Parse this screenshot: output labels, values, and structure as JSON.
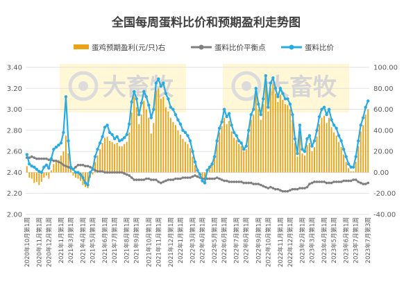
{
  "chart_data": {
    "type": "bar+line",
    "title": "全国每周蛋料比价和预期盈利走势图",
    "legend": {
      "placement": "top",
      "entries": [
        "蛋鸡预期盈利(元/只)右",
        "蛋料比价平衡点",
        "蛋料比价"
      ]
    },
    "colors": {
      "profit": "#E8A317",
      "breakeven": "#7F7F7F",
      "ratio": "#29ABE2"
    },
    "y_left": {
      "min": 2.0,
      "max": 3.4,
      "step": 0.2,
      "tick_labels": [
        "2.00",
        "2.20",
        "2.40",
        "2.60",
        "2.80",
        "3.00",
        "3.20",
        "3.40"
      ]
    },
    "y_right": {
      "min": -40,
      "max": 100,
      "step": 20,
      "tick_labels": [
        "-40.00",
        "-20.00",
        "0.00",
        "20.00",
        "40.00",
        "60.00",
        "80.00",
        "100.00"
      ]
    },
    "x_tick_labels": [
      "2020年10月第1周",
      "2020年11月第1周",
      "2020年12月第1周",
      "2021年1月第1周",
      "2021年3月第1周",
      "2021年4月第1周",
      "2021年5月第1周",
      "2021年6月第1周",
      "2021年7月第1周",
      "2021年8月第1周",
      "2021年9月第1周",
      "2021年10月第1周",
      "2021年11月第1周",
      "2021年12月第1周",
      "2022年1月第1周",
      "2022年3月第1周",
      "2022年4月第1周",
      "2022年5月第1周",
      "2022年6月第1周",
      "2022年7月第1周",
      "2022年8月第1周",
      "2022年9月第1周",
      "2022年10月第1周",
      "2022年11月第1周",
      "2022年12月第1周",
      "2023年2月第1周",
      "2023年3月第1周",
      "2023年4月第1周",
      "2023年5月第1周",
      "2023年6月第1周",
      "2023年7月第1周",
      "2023年7月第3周"
    ],
    "series": [
      {
        "name": "蛋料比价",
        "axis": "left",
        "kind": "line",
        "values": [
          2.57,
          2.48,
          2.46,
          2.45,
          2.43,
          2.41,
          2.4,
          2.45,
          2.47,
          2.44,
          2.53,
          2.62,
          2.64,
          2.66,
          2.68,
          2.78,
          3.12,
          2.7,
          2.45,
          2.43,
          2.4,
          2.4,
          2.38,
          2.35,
          2.3,
          2.28,
          2.4,
          2.43,
          2.55,
          2.62,
          2.68,
          2.74,
          2.83,
          2.85,
          2.78,
          2.76,
          2.72,
          2.74,
          2.7,
          2.71,
          2.73,
          2.76,
          2.86,
          3.07,
          3.17,
          3.1,
          2.95,
          3.06,
          3.17,
          3.12,
          3.04,
          2.92,
          3.0,
          3.25,
          3.29,
          3.22,
          3.25,
          3.15,
          3.1,
          3.02,
          3.0,
          2.95,
          2.9,
          2.86,
          2.8,
          2.78,
          2.75,
          2.7,
          2.6,
          2.5,
          2.42,
          2.38,
          2.32,
          2.3,
          2.42,
          2.45,
          2.48,
          2.55,
          2.7,
          2.82,
          2.88,
          3.0,
          2.93,
          2.96,
          2.85,
          2.78,
          2.75,
          2.7,
          2.68,
          2.62,
          2.65,
          2.8,
          2.95,
          3.0,
          3.2,
          3.05,
          2.95,
          3.1,
          3.32,
          3.02,
          3.25,
          3.3,
          3.2,
          3.12,
          3.2,
          3.15,
          3.1,
          3.1,
          3.05,
          2.95,
          2.72,
          2.58,
          2.85,
          2.62,
          2.6,
          2.72,
          2.75,
          2.65,
          2.7,
          2.8,
          2.93,
          3.0,
          3.02,
          2.95,
          3.0,
          2.9,
          2.85,
          2.82,
          2.75,
          2.7,
          2.62,
          2.55,
          2.48,
          2.45,
          2.45,
          2.55,
          2.7,
          2.85,
          2.92,
          3.02,
          3.08
        ]
      },
      {
        "name": "蛋料比价平衡点",
        "axis": "left",
        "kind": "line",
        "values": [
          2.54,
          2.54,
          2.55,
          2.54,
          2.53,
          2.53,
          2.53,
          2.53,
          2.53,
          2.52,
          2.52,
          2.51,
          2.51,
          2.5,
          2.49,
          2.47,
          2.46,
          2.45,
          2.44,
          2.43,
          2.45,
          2.47,
          2.47,
          2.47,
          2.46,
          2.46,
          2.45,
          2.44,
          2.42,
          2.41,
          2.41,
          2.41,
          2.4,
          2.4,
          2.4,
          2.4,
          2.4,
          2.4,
          2.4,
          2.4,
          2.39,
          2.38,
          2.37,
          2.35,
          2.33,
          2.33,
          2.33,
          2.33,
          2.33,
          2.34,
          2.34,
          2.33,
          2.33,
          2.33,
          2.31,
          2.3,
          2.31,
          2.32,
          2.33,
          2.33,
          2.33,
          2.34,
          2.34,
          2.34,
          2.35,
          2.35,
          2.35,
          2.35,
          2.36,
          2.37,
          2.36,
          2.35,
          2.34,
          2.34,
          2.34,
          2.34,
          2.34,
          2.34,
          2.35,
          2.34,
          2.33,
          2.32,
          2.32,
          2.31,
          2.31,
          2.31,
          2.31,
          2.31,
          2.31,
          2.3,
          2.3,
          2.3,
          2.3,
          2.29,
          2.29,
          2.29,
          2.28,
          2.27,
          2.26,
          2.25,
          2.26,
          2.25,
          2.24,
          2.24,
          2.23,
          2.22,
          2.22,
          2.22,
          2.23,
          2.24,
          2.24,
          2.24,
          2.25,
          2.25,
          2.25,
          2.26,
          2.29,
          2.3,
          2.31,
          2.31,
          2.31,
          2.31,
          2.31,
          2.3,
          2.3,
          2.3,
          2.31,
          2.31,
          2.31,
          2.31,
          2.32,
          2.32,
          2.32,
          2.32,
          2.33,
          2.33,
          2.31,
          2.3,
          2.29,
          2.29,
          2.3
        ]
      },
      {
        "name": "蛋鸡预期盈利(元/只)右",
        "axis": "right",
        "kind": "bar",
        "values": [
          6.0,
          -5.0,
          -6.0,
          -10.0,
          -9.0,
          -12.0,
          -9.0,
          -5.0,
          -3.0,
          -6.0,
          2.0,
          8.0,
          10.0,
          12.0,
          16.0,
          20.0,
          35.0,
          18.0,
          4.0,
          -3.0,
          -5.0,
          -6.0,
          -8.0,
          -12.0,
          -14.0,
          -15.0,
          -5.0,
          -2.0,
          10.0,
          16.0,
          22.0,
          28.0,
          33.0,
          34.0,
          30.0,
          29.0,
          27.0,
          28.0,
          25.0,
          25.0,
          27.0,
          29.0,
          38.0,
          57.0,
          72.0,
          62.0,
          46.0,
          55.0,
          68.0,
          60.0,
          52.0,
          37.0,
          47.0,
          78.0,
          80.0,
          70.0,
          72.0,
          62.0,
          58.0,
          52.0,
          48.0,
          45.0,
          40.0,
          36.0,
          32.0,
          29.0,
          27.0,
          23.0,
          15.0,
          7.0,
          0.0,
          -3.0,
          -8.0,
          -10.0,
          2.0,
          5.0,
          8.0,
          14.0,
          27.0,
          38.0,
          44.0,
          52.0,
          46.0,
          49.0,
          39.0,
          33.0,
          31.0,
          27.0,
          25.0,
          20.0,
          22.0,
          36.0,
          50.0,
          55.0,
          74.0,
          60.0,
          50.0,
          65.0,
          86.0,
          58.0,
          80.0,
          84.0,
          75.0,
          67.0,
          74.0,
          69.0,
          65.0,
          64.0,
          60.0,
          50.0,
          28.0,
          15.0,
          40.0,
          18.0,
          16.0,
          26.0,
          28.0,
          20.0,
          24.0,
          34.0,
          46.0,
          52.0,
          54.0,
          47.0,
          52.0,
          43.0,
          38.0,
          35.0,
          29.0,
          24.0,
          17.0,
          10.0,
          4.0,
          1.0,
          1.0,
          10.0,
          25.0,
          39.0,
          45.0,
          55.0,
          60.0
        ]
      }
    ]
  },
  "watermark": {
    "text": "大畜牧"
  }
}
